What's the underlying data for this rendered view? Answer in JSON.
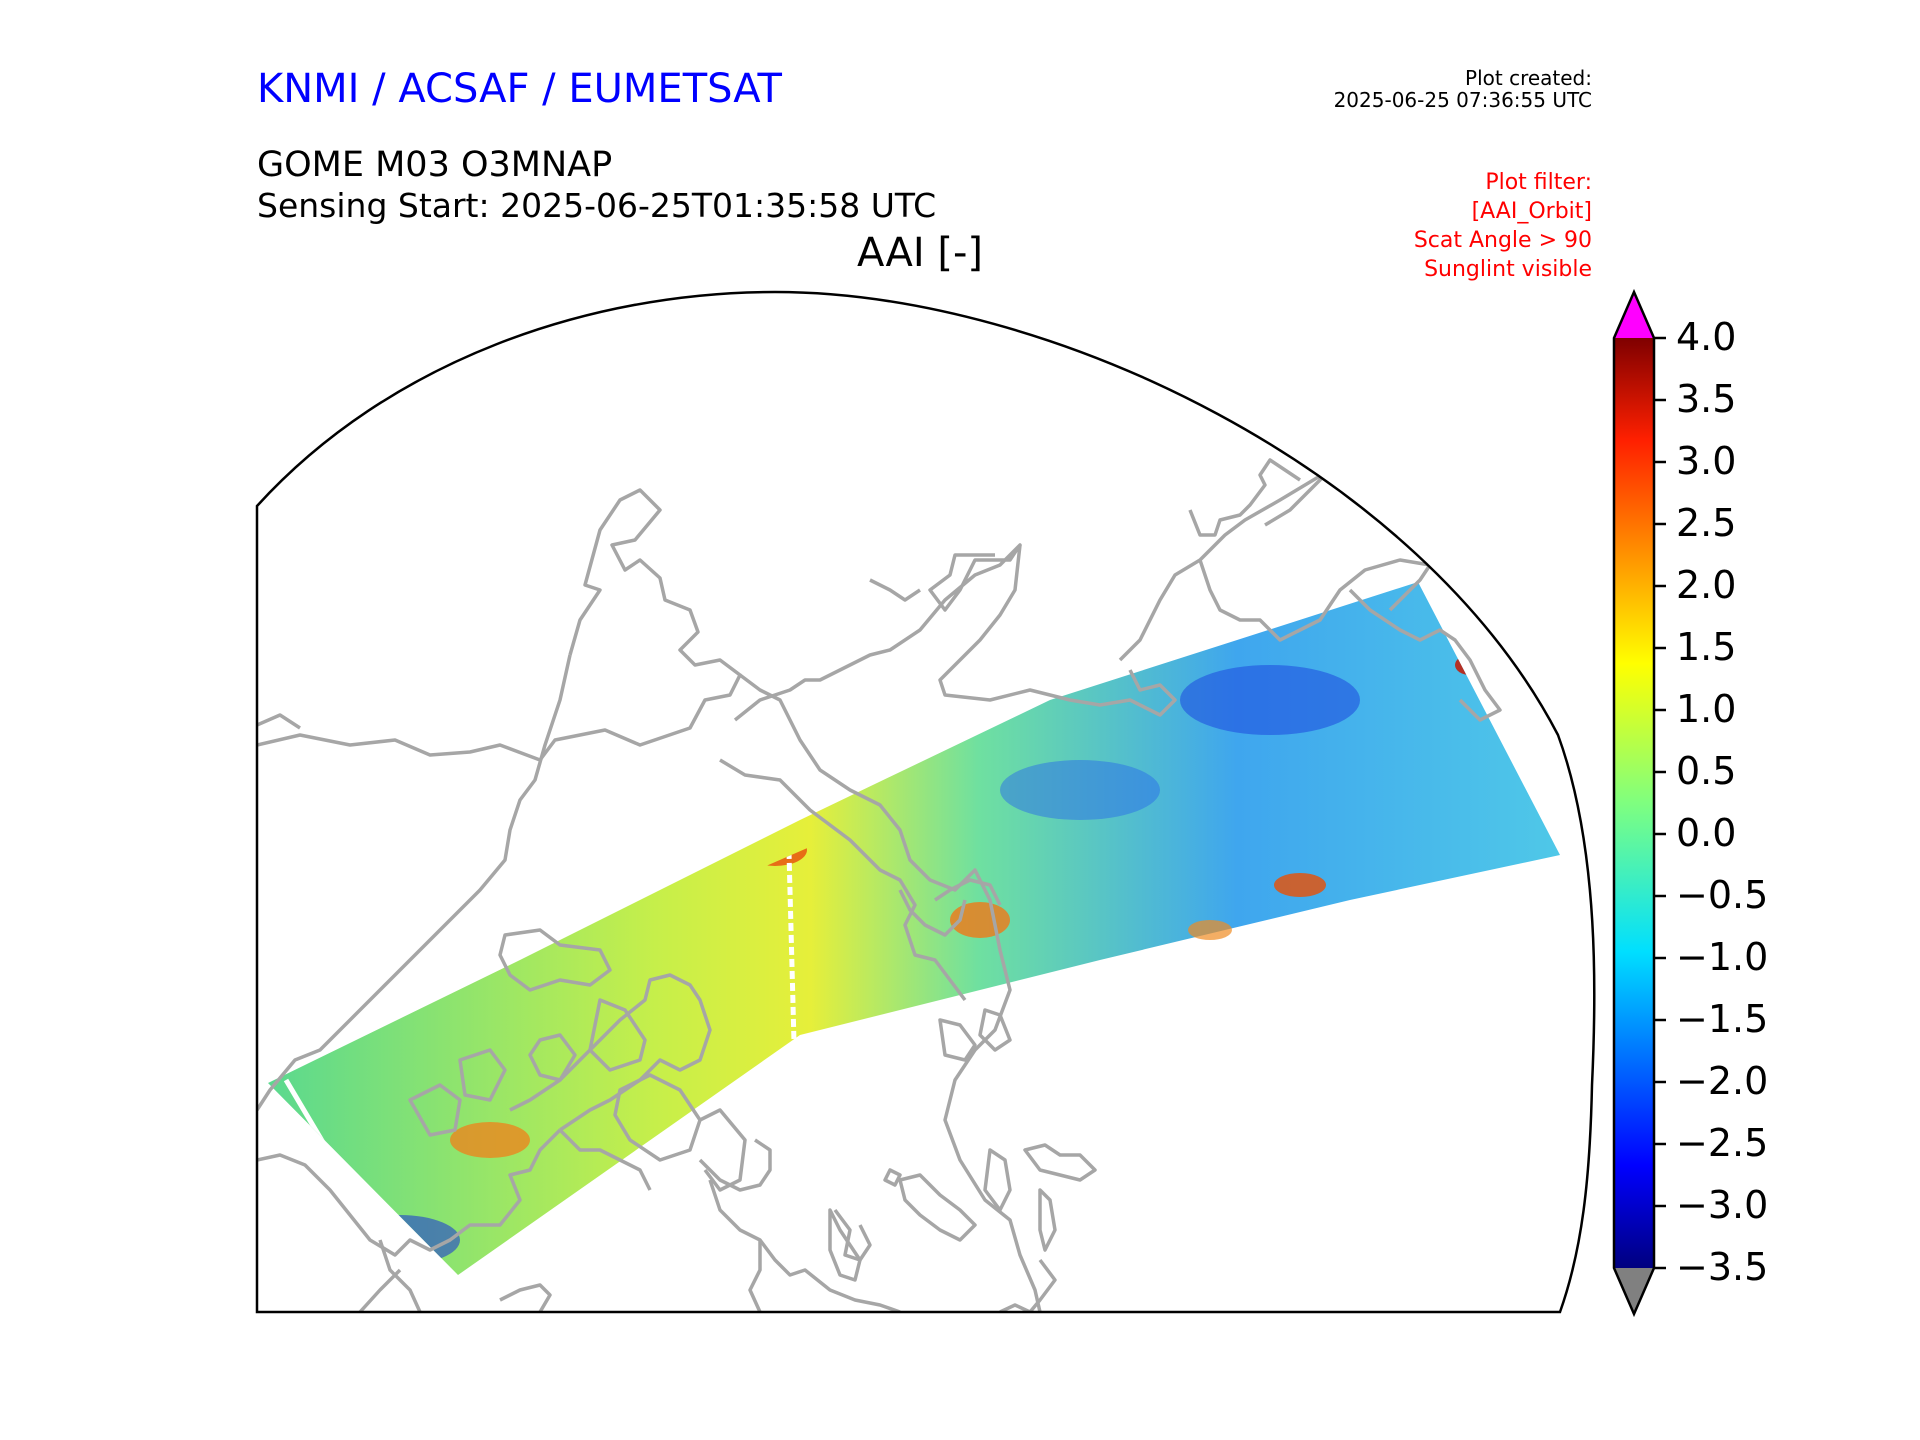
{
  "header": {
    "agency": "KNMI / ACSAF / EUMETSAT",
    "plot_created_label": "Plot created:",
    "plot_created_value": "2025-06-25 07:36:55 UTC",
    "product": "GOME M03 O3MNAP",
    "sensing_start": "Sensing Start: 2025-06-25T01:35:58 UTC",
    "variable": "AAI [-]"
  },
  "filter": {
    "lines": [
      "Plot filter:",
      "[AAI_Orbit]",
      "Scat Angle > 90",
      "Sunglint visible"
    ]
  },
  "colorbar": {
    "ticks": [
      "4.0",
      "3.5",
      "3.0",
      "2.5",
      "2.0",
      "1.5",
      "1.0",
      "0.5",
      "0.0",
      "−0.5",
      "−1.0",
      "−1.5",
      "−2.0",
      "−2.5",
      "−3.0",
      "−3.5"
    ],
    "min": -3.5,
    "max": 4.0,
    "over_color": "#ff00ff",
    "under_color": "#808080"
  },
  "colors": {
    "agency": "#0000ff",
    "filter": "#ff0000",
    "coastline": "#a6a6a6"
  }
}
